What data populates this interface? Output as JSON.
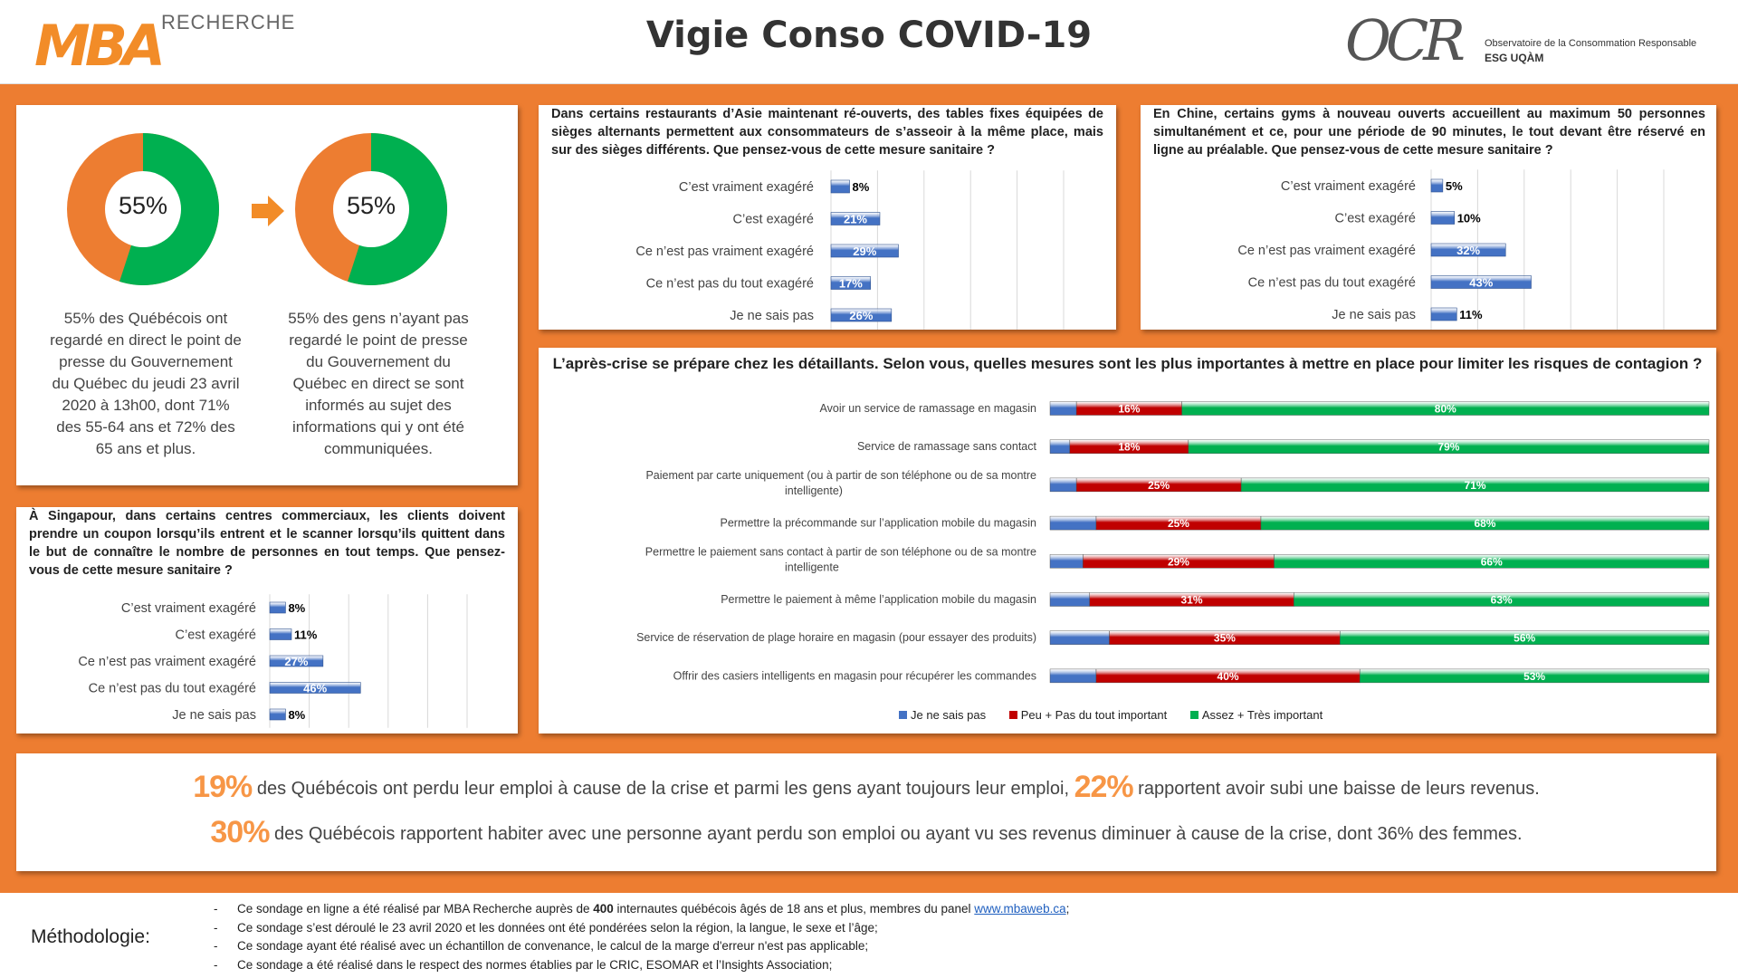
{
  "header": {
    "title": "Vigie Conso COVID-19",
    "logo_left_main": "MBA",
    "logo_left_sub": "RECHERCHE",
    "logo_right_main": "OCR",
    "logo_right_line1": "Observatoire de la Consommation Responsable",
    "logo_right_line2": "ESG UQÀM"
  },
  "colors": {
    "orange": "#ed7d31",
    "green": "#00b050",
    "blue": "#4472c4",
    "red": "#c00000",
    "stat_orange": "#f79646"
  },
  "donuts": [
    {
      "value_label": "55%",
      "value": 55,
      "text": "55% des Québécois ont regardé en direct le point de presse du Gouvernement du Québec du jeudi 23 avril 2020 à 13h00, dont 71% des 55-64 ans et 72% des 65 ans et plus."
    },
    {
      "value_label": "55%",
      "value": 55,
      "text": "55% des gens n’ayant pas regardé le point de presse du Gouvernement du Québec en direct se sont informés au sujet des informations qui y ont été communiquées."
    }
  ],
  "questions": {
    "asia": "Dans certains restaurants d’Asie maintenant ré-ouverts, des tables fixes équipées de sièges alternants permettent aux consommateurs de s’asseoir à la même place, mais sur des sièges différents. Que pensez-vous de cette mesure sanitaire ?",
    "china": "En Chine, certains gyms à nouveau ouverts accueillent au maximum 50 personnes simultanément et ce, pour une période de 90 minutes, le tout devant être réservé en ligne au préalable. Que pensez-vous de cette mesure sanitaire ?",
    "singapore": "À Singapour, dans certains centres commerciaux, les clients doivent prendre un coupon lorsqu’ils entrent et le scanner lorsqu’ils quittent dans le but de connaître le nombre de personnes en tout temps. Que pensez-vous de cette mesure sanitaire ?",
    "retail": "L’après-crise se prépare chez les détaillants. Selon vous, quelles mesures sont les plus importantes à mettre en place pour limiter les risques de contagion ?"
  },
  "chart_data": [
    {
      "id": "asia",
      "type": "bar",
      "orientation": "horizontal",
      "categories": [
        "C’est vraiment exagéré",
        "C’est exagéré",
        "Ce n’est pas vraiment exagéré",
        "Ce n’est pas du tout exagéré",
        "Je ne sais pas"
      ],
      "values": [
        8,
        21,
        29,
        17,
        26
      ],
      "labels": [
        "8%",
        "21%",
        "29%",
        "17%",
        "26%"
      ],
      "xlim": [
        0,
        100
      ],
      "grid": true
    },
    {
      "id": "china",
      "type": "bar",
      "orientation": "horizontal",
      "categories": [
        "C’est vraiment exagéré",
        "C’est exagéré",
        "Ce n’est pas vraiment exagéré",
        "Ce n’est pas du tout exagéré",
        "Je ne sais pas"
      ],
      "values": [
        5,
        10,
        32,
        43,
        11
      ],
      "labels": [
        "5%",
        "10%",
        "32%",
        "43%",
        "11%"
      ],
      "xlim": [
        0,
        100
      ],
      "grid": true
    },
    {
      "id": "singapore",
      "type": "bar",
      "orientation": "horizontal",
      "categories": [
        "C’est vraiment exagéré",
        "C’est exagéré",
        "Ce n’est pas vraiment exagéré",
        "Ce n’est pas du tout exagéré",
        "Je ne sais pas"
      ],
      "values": [
        8,
        11,
        27,
        46,
        8
      ],
      "labels": [
        "8%",
        "11%",
        "27%",
        "46%",
        "8%"
      ],
      "xlim": [
        0,
        100
      ],
      "grid": true
    },
    {
      "id": "retail",
      "type": "bar",
      "orientation": "horizontal",
      "stacked": true,
      "categories": [
        "Avoir un service de ramassage en magasin",
        "Service de ramassage sans contact",
        "Paiement par carte uniquement (ou à partir de son téléphone ou de sa montre intelligente)",
        "Permettre la précommande sur l’application mobile du magasin",
        "Permettre le paiement sans contact à partir de son téléphone ou de sa montre intelligente",
        "Permettre le paiement à même l’application mobile du magasin",
        "Service de réservation de plage horaire en magasin (pour essayer des produits)",
        "Offrir des casiers intelligents en magasin pour récupérer les commandes"
      ],
      "series": [
        {
          "name": "Je ne sais pas",
          "values": [
            4,
            3,
            4,
            7,
            5,
            6,
            9,
            7
          ]
        },
        {
          "name": "Peu + Pas du tout important",
          "values": [
            16,
            18,
            25,
            25,
            29,
            31,
            35,
            40
          ]
        },
        {
          "name": "Assez + Très important",
          "values": [
            80,
            79,
            71,
            68,
            66,
            63,
            56,
            53
          ]
        }
      ],
      "xlim": [
        0,
        100
      ],
      "legend": "bottom"
    }
  ],
  "stats": {
    "line1": {
      "big1": "19%",
      "text1": " des Québécois ont perdu leur emploi à cause de la crise et parmi les gens ayant toujours leur emploi, ",
      "big2": "22%",
      "text2": " rapportent avoir subi une baisse de leurs revenus."
    },
    "line2": {
      "big1": "30%",
      "text1": " des Québécois rapportent habiter avec une personne ayant perdu son emploi ou ayant vu ses revenus diminuer à cause de la crise, dont 36% des femmes."
    }
  },
  "footer": {
    "label": "Méthodologie:",
    "note1_a": "Ce sondage en ligne a été réalisé par MBA Recherche auprès de ",
    "note1_bold": "400",
    "note1_b": " internautes québécois âgés de 18 ans et plus, membres du panel ",
    "note1_link": "www.mbaweb.ca",
    "note1_c": ";",
    "note2": "Ce sondage s’est déroulé le 23 avril 2020 et les données ont été pondérées selon la région, la langue, le sexe et l’âge;",
    "note3": "Ce sondage ayant été réalisé avec un échantillon de convenance, le calcul de la marge d'erreur n'est pas applicable;",
    "note4": "Ce sondage a été réalisé dans le respect des normes établies par le CRIC, ESOMAR et l’Insights Association;"
  }
}
